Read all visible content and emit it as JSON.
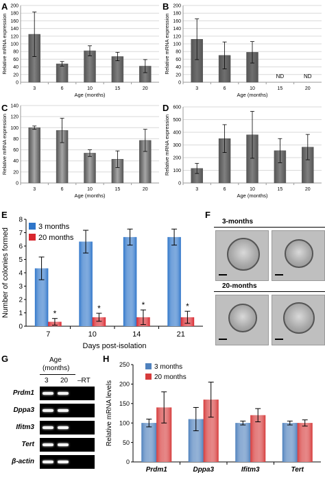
{
  "panels": {
    "A": {
      "label": "A",
      "type": "bar",
      "ylabel": "Relative mRNA expression",
      "xlabel": "Age (months)",
      "categories": [
        "3",
        "6",
        "10",
        "15",
        "20"
      ],
      "values": [
        125,
        48,
        82,
        67,
        42
      ],
      "errors": [
        58,
        6,
        13,
        11,
        17
      ],
      "yticks": [
        0,
        20,
        40,
        60,
        80,
        100,
        120,
        140,
        160,
        180,
        200
      ],
      "ylim": [
        0,
        200
      ],
      "color": "#7f7f7f",
      "nd": []
    },
    "B": {
      "label": "B",
      "type": "bar",
      "ylabel": "Relative mRNA expression",
      "xlabel": "Age (months)",
      "categories": [
        "3",
        "6",
        "10",
        "15",
        "20"
      ],
      "values": [
        112,
        70,
        78,
        null,
        null
      ],
      "errors": [
        53,
        35,
        28,
        0,
        0
      ],
      "yticks": [
        0,
        20,
        40,
        60,
        80,
        100,
        120,
        140,
        160,
        180,
        200
      ],
      "ylim": [
        0,
        200
      ],
      "color": "#6f6f6f",
      "nd": [
        "ND",
        "ND"
      ]
    },
    "C": {
      "label": "C",
      "type": "bar",
      "ylabel": "Relative mRNA expression",
      "xlabel": "Age (months)",
      "categories": [
        "3",
        "6",
        "10",
        "15",
        "20"
      ],
      "values": [
        100,
        95,
        54,
        43,
        77
      ],
      "errors": [
        3,
        22,
        6,
        15,
        20
      ],
      "yticks": [
        0,
        20,
        40,
        60,
        80,
        100,
        120,
        140
      ],
      "ylim": [
        0,
        140
      ],
      "color": "#a6a6a6",
      "nd": []
    },
    "D": {
      "label": "D",
      "type": "bar",
      "ylabel": "Relative mRNA expression",
      "xlabel": "Age (months)",
      "categories": [
        "3",
        "6",
        "10",
        "15",
        "20"
      ],
      "values": [
        115,
        350,
        380,
        255,
        283
      ],
      "errors": [
        40,
        110,
        185,
        95,
        100
      ],
      "yticks": [
        0,
        100,
        200,
        300,
        400,
        500,
        600
      ],
      "ylim": [
        0,
        600
      ],
      "color": "#808080",
      "nd": []
    },
    "E": {
      "label": "E",
      "type": "grouped-bar",
      "ylabel": "Number of colonies formed",
      "xlabel": "Days post-isolation",
      "categories": [
        "7",
        "10",
        "14",
        "21"
      ],
      "yticks": [
        0,
        1,
        2,
        3,
        4,
        5,
        6,
        7,
        8
      ],
      "ylim": [
        0,
        8
      ],
      "series": [
        {
          "name": "3 months",
          "values": [
            4.33,
            6.33,
            6.67,
            6.67
          ],
          "errors": [
            0.85,
            0.85,
            0.6,
            0.6
          ],
          "color": "#2e75c9"
        },
        {
          "name": "20 months",
          "values": [
            0.33,
            0.67,
            0.67,
            0.67
          ],
          "errors": [
            0.25,
            0.3,
            0.55,
            0.45
          ],
          "color": "#d9272e"
        }
      ],
      "sig": [
        "*",
        "*",
        "*",
        "*"
      ]
    },
    "F": {
      "label": "F",
      "group1": "3-months",
      "group2": "20-months"
    },
    "G": {
      "label": "G",
      "header": "Age",
      "header2": "(months)",
      "lanes": [
        "3",
        "20",
        "–RT"
      ],
      "genes": [
        "Prdm1",
        "Dppa3",
        "Ifitm3",
        "Tert",
        "β-actin"
      ]
    },
    "H": {
      "label": "H",
      "type": "grouped-bar",
      "ylabel": "Relative mRNA levels",
      "categories": [
        "Prdm1",
        "Dppa3",
        "Ifitm3",
        "Tert"
      ],
      "yticks": [
        0,
        50,
        100,
        150,
        200,
        250
      ],
      "ylim": [
        0,
        250
      ],
      "series": [
        {
          "name": "3 months",
          "values": [
            100,
            110,
            100,
            100
          ],
          "errors": [
            10,
            30,
            5,
            5
          ],
          "color": "#4f81bd"
        },
        {
          "name": "20 months",
          "values": [
            140,
            160,
            120,
            100
          ],
          "errors": [
            40,
            45,
            17,
            8
          ],
          "color": "#d63b3b"
        }
      ]
    }
  }
}
